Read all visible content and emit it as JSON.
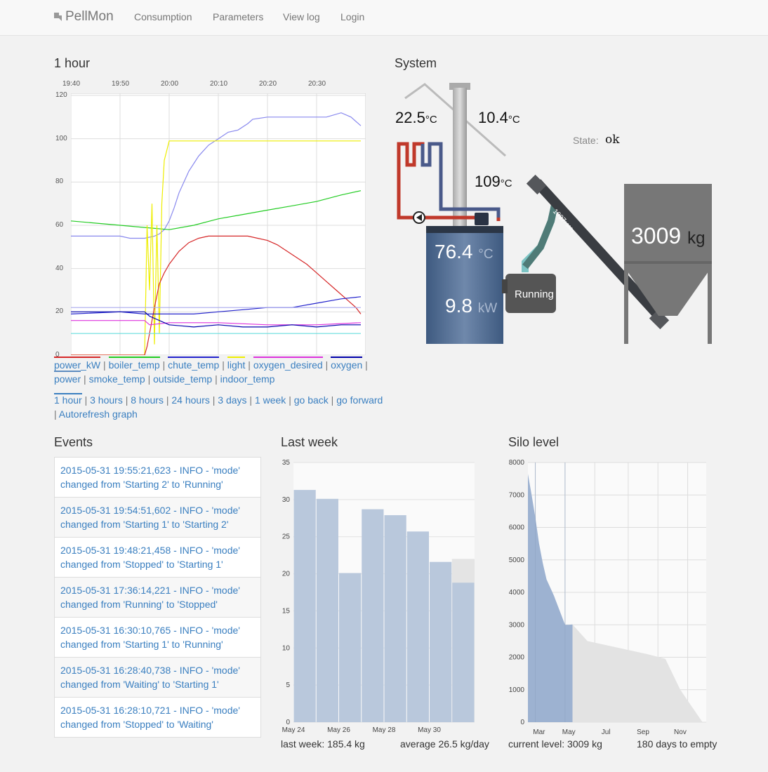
{
  "nav": {
    "brand": "PellMon",
    "links": [
      "Consumption",
      "Parameters",
      "View log",
      "Login"
    ]
  },
  "sections": {
    "one_hour": "1 hour",
    "system": "System",
    "events": "Events",
    "last_week": "Last week",
    "silo_level": "Silo level"
  },
  "colors": {
    "power_kW": "#d62728",
    "boiler_temp": "#22cc22",
    "chute_temp": "#2222cc",
    "light": "#eeee00",
    "oxygen_desired": "#dd33dd",
    "oxygen": "#0000aa",
    "power": "#5c8bc0",
    "smoke_temp": "#8888ee",
    "outside_temp": "#66dddd",
    "indoor_temp": "#aaaaee"
  },
  "legend": {
    "items": [
      "power_kW",
      "boiler_temp",
      "chute_temp",
      "light",
      "oxygen_desired",
      "oxygen",
      "power",
      "smoke_temp",
      "outside_temp",
      "indoor_temp"
    ]
  },
  "timelinks": [
    "1 hour",
    "3 hours",
    "8 hours",
    "24 hours",
    "3 days",
    "1 week",
    "go back",
    "go forward",
    "Autorefresh graph"
  ],
  "system": {
    "indoor_temp": "22.5",
    "outside_temp": "10.4",
    "smoke_temp": "109",
    "unit_c": "°C",
    "state_label": "State:",
    "state_value": "ok",
    "silo_kg": "3009",
    "silo_unit": "kg",
    "boiler_temp": "76.4",
    "boiler_power": "9.8",
    "power_unit": "kW",
    "burner_mode": "Running",
    "feeder_count": "1997",
    "feeder_unit": "/ 360s"
  },
  "events": [
    "2015-05-31 19:55:21,623 - INFO - 'mode' changed from 'Starting 2' to 'Running'",
    "2015-05-31 19:54:51,602 - INFO - 'mode' changed from 'Starting 1' to 'Starting 2'",
    "2015-05-31 19:48:21,458 - INFO - 'mode' changed from 'Stopped' to 'Starting 1'",
    "2015-05-31 17:36:14,221 - INFO - 'mode' changed from 'Running' to 'Stopped'",
    "2015-05-31 16:30:10,765 - INFO - 'mode' changed from 'Starting 1' to 'Running'",
    "2015-05-31 16:28:40,738 - INFO - 'mode' changed from 'Waiting' to 'Starting 1'",
    "2015-05-31 16:28:10,721 - INFO - 'mode' changed from 'Stopped' to 'Waiting'"
  ],
  "last_week_footer": {
    "left": "last week: 185.4 kg",
    "right": "average 26.5 kg/day"
  },
  "silo_footer": {
    "left": "current level: 3009 kg",
    "right": "180 days to empty"
  },
  "chart_data": [
    {
      "type": "line",
      "title": "1 hour",
      "x_ticks": [
        "19:40",
        "19:50",
        "20:00",
        "20:10",
        "20:20",
        "20:30"
      ],
      "y_ticks": [
        0,
        20,
        40,
        60,
        80,
        100,
        120
      ],
      "ylim": [
        0,
        120
      ],
      "xlim_minutes": [
        0,
        60
      ],
      "series": [
        {
          "name": "smoke_temp",
          "x": [
            0,
            10,
            12,
            15,
            17,
            18,
            19,
            20,
            21,
            22,
            24,
            26,
            28,
            30,
            32,
            34,
            36,
            37,
            40,
            45,
            50,
            52,
            55,
            57,
            59
          ],
          "y": [
            55,
            55,
            54,
            54,
            55,
            56,
            58,
            62,
            68,
            75,
            85,
            92,
            97,
            100,
            103,
            104,
            107,
            109,
            110,
            110,
            110,
            110,
            112,
            110,
            106
          ]
        },
        {
          "name": "boiler_temp",
          "x": [
            0,
            10,
            15,
            20,
            25,
            30,
            35,
            40,
            45,
            50,
            55,
            59
          ],
          "y": [
            62,
            60,
            59,
            58,
            60,
            63,
            65,
            67,
            69,
            71,
            74,
            76
          ]
        },
        {
          "name": "light",
          "x": [
            0,
            15,
            15.5,
            16,
            16.5,
            17,
            17.5,
            18,
            18.5,
            19,
            20,
            25,
            30,
            35,
            40,
            45,
            50,
            55,
            59
          ],
          "y": [
            0,
            0,
            60,
            30,
            70,
            5,
            60,
            10,
            70,
            90,
            99,
            99,
            99,
            99,
            99,
            99,
            99,
            99,
            99
          ]
        },
        {
          "name": "power_kW",
          "x": [
            0,
            15,
            15.5,
            16,
            17,
            18,
            19,
            20,
            22,
            24,
            26,
            28,
            30,
            32,
            34,
            36,
            38,
            40,
            42,
            44,
            46,
            48,
            50,
            52,
            54,
            56,
            58,
            59
          ],
          "y": [
            0,
            0,
            4,
            10,
            22,
            33,
            38,
            42,
            48,
            52,
            54,
            55,
            55,
            55,
            55,
            55,
            54,
            53,
            51,
            48,
            45,
            42,
            38,
            34,
            30,
            26,
            22,
            19
          ]
        },
        {
          "name": "chute_temp",
          "x": [
            0,
            10,
            15,
            20,
            25,
            30,
            35,
            40,
            45,
            50,
            55,
            59
          ],
          "y": [
            19,
            20,
            19,
            19,
            19,
            20,
            21,
            22,
            22,
            24,
            26,
            27
          ]
        },
        {
          "name": "oxygen_desired",
          "x": [
            0,
            15,
            16,
            20,
            30,
            40,
            50,
            59
          ],
          "y": [
            16,
            16,
            14,
            15,
            15,
            14,
            14,
            15
          ]
        },
        {
          "name": "oxygen",
          "x": [
            0,
            15,
            16,
            20,
            25,
            30,
            35,
            40,
            45,
            50,
            55,
            59
          ],
          "y": [
            20,
            20,
            18,
            14,
            13,
            14,
            13,
            13,
            14,
            13,
            14,
            14
          ]
        },
        {
          "name": "outside_temp",
          "x": [
            0,
            59
          ],
          "y": [
            10,
            10
          ]
        },
        {
          "name": "indoor_temp",
          "x": [
            0,
            59
          ],
          "y": [
            22,
            22
          ]
        }
      ]
    },
    {
      "type": "bar",
      "title": "Last week",
      "categories": [
        "May 24",
        "May 25",
        "May 26",
        "May 27",
        "May 28",
        "May 29",
        "May 30",
        "May 31"
      ],
      "x_ticks": [
        "May 24",
        "May 26",
        "May 28",
        "May 30"
      ],
      "values": [
        31.3,
        30.1,
        20.1,
        28.7,
        27.9,
        25.7,
        21.6,
        18.8
      ],
      "forecast_last": 22.0,
      "ylim": [
        0,
        35
      ],
      "y_ticks": [
        0,
        5,
        10,
        15,
        20,
        25,
        30,
        35
      ]
    },
    {
      "type": "area",
      "title": "Silo level",
      "x_ticks": [
        "Mar",
        "May",
        "Jul",
        "Sep",
        "Nov"
      ],
      "y_ticks": [
        0,
        1000,
        2000,
        3000,
        4000,
        5000,
        6000,
        7000,
        8000
      ],
      "ylim": [
        0,
        8000
      ],
      "history": {
        "x": [
          0,
          0.5,
          1,
          1.5,
          2,
          2.5,
          3,
          3.5,
          4,
          4.5,
          5,
          5.5,
          6
        ],
        "y": [
          7650,
          7000,
          6300,
          5500,
          4900,
          4400,
          4150,
          3900,
          3600,
          3300,
          3000,
          3000,
          3009
        ]
      },
      "forecast": {
        "x": [
          6,
          8,
          10,
          12,
          14,
          16,
          18.5,
          20.5,
          23.5
        ],
        "y": [
          3009,
          2500,
          2400,
          2300,
          2200,
          2100,
          1950,
          1000,
          0
        ]
      }
    }
  ]
}
